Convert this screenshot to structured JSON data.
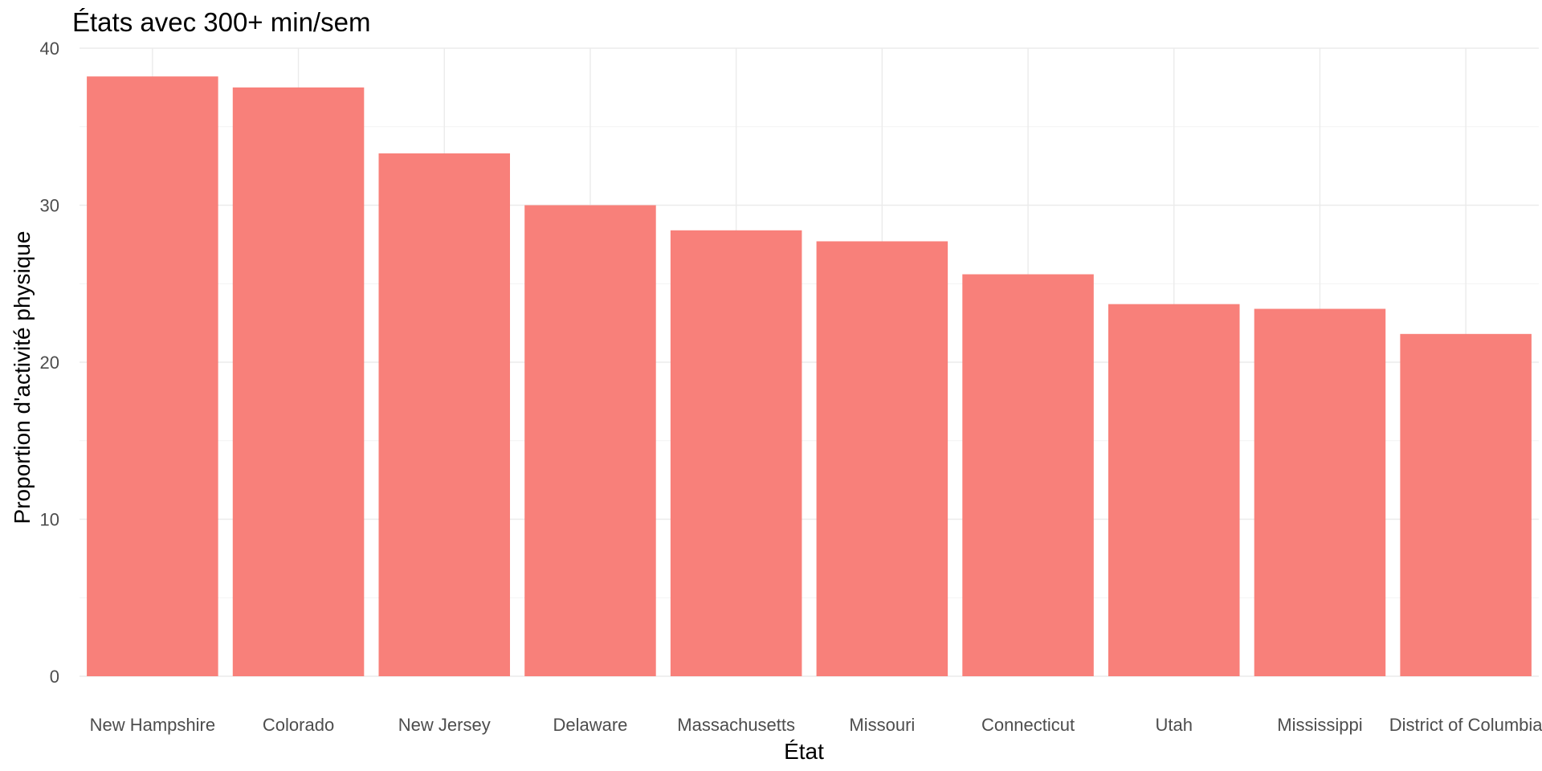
{
  "chart_data": {
    "type": "bar",
    "title": "États avec 300+ min/sem",
    "xlabel": "État",
    "ylabel": "Proportion d'activité physique",
    "categories": [
      "New Hampshire",
      "Colorado",
      "New Jersey",
      "Delaware",
      "Massachusetts",
      "Missouri",
      "Connecticut",
      "Utah",
      "Mississippi",
      "District of Columbia"
    ],
    "values": [
      38.2,
      37.5,
      33.3,
      30.0,
      28.4,
      27.7,
      25.6,
      23.7,
      23.4,
      21.8
    ],
    "ylim": [
      0,
      40
    ],
    "yticks": [
      0,
      10,
      20,
      30,
      40
    ],
    "grid": true,
    "legend": "none",
    "bar_color": "#F8807A",
    "grid_color": "#EBEBEB",
    "tick_label_color": "#4D4D4D"
  }
}
